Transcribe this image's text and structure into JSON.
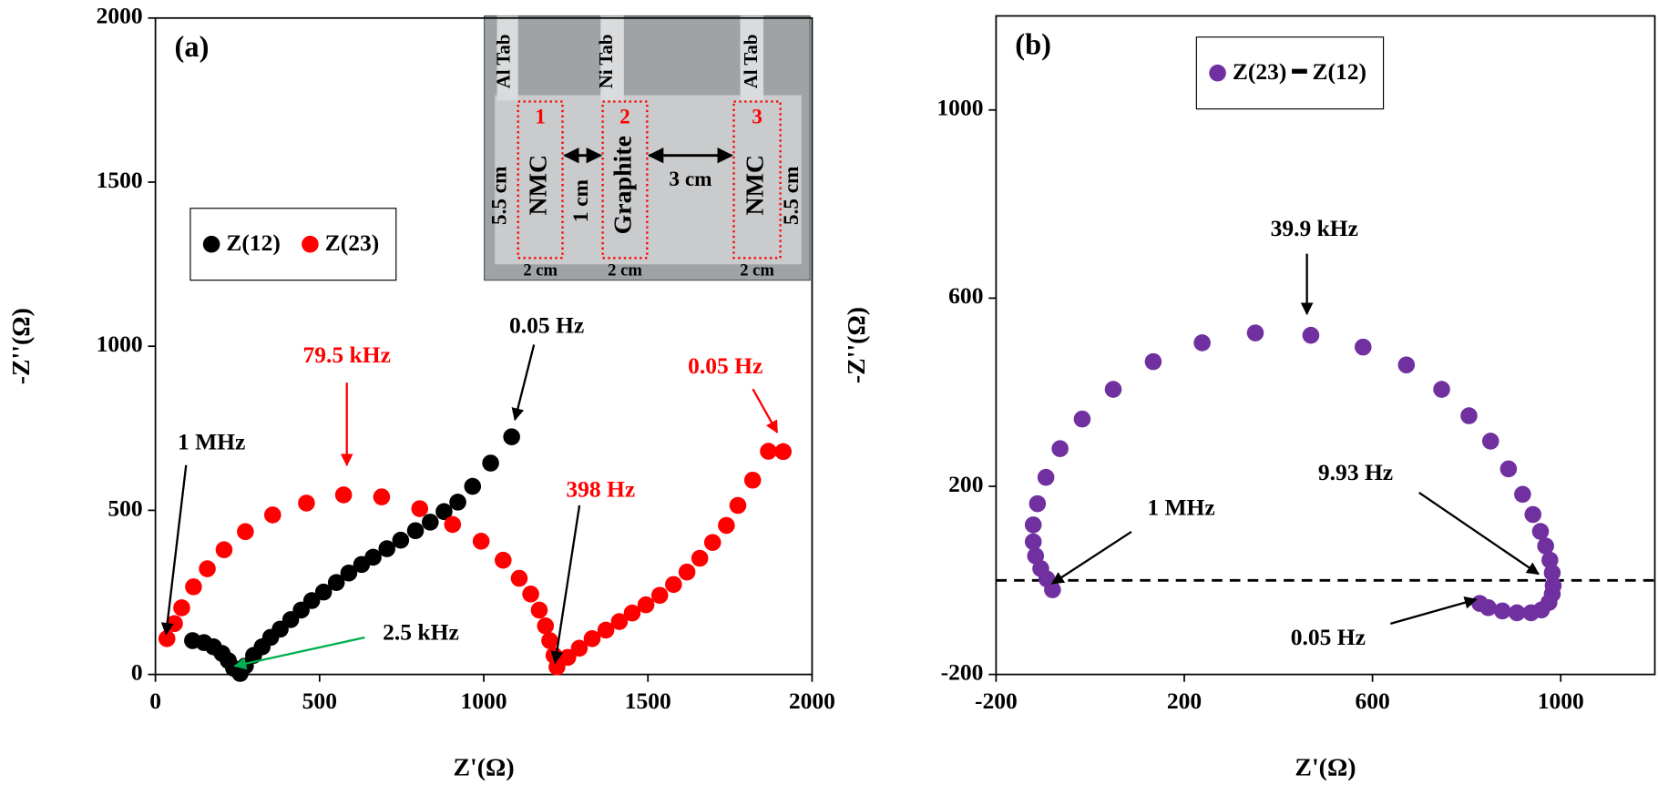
{
  "chart_data": [
    {
      "type": "scatter",
      "label": "(a)",
      "xlabel": "Z'(Ω)",
      "ylabel": "-Z''(Ω)",
      "xlim": [
        0,
        2000
      ],
      "ylim": [
        0,
        2000
      ],
      "xticks": [
        0,
        500,
        1000,
        1500,
        2000
      ],
      "yticks": [
        0,
        500,
        1000,
        1500,
        2000
      ],
      "legend": "center left",
      "series": [
        {
          "name": "Z(12)",
          "color": "#000000",
          "x": [
            113,
            148,
            177,
            203,
            222,
            238,
            258,
            274,
            299,
            325,
            351,
            380,
            412,
            444,
            476,
            512,
            551,
            589,
            628,
            663,
            705,
            747,
            792,
            837,
            879,
            921,
            966,
            1021,
            1085
          ],
          "values": [
            103,
            97,
            84,
            64,
            42,
            19,
            3,
            26,
            58,
            84,
            113,
            138,
            167,
            196,
            225,
            251,
            280,
            309,
            335,
            357,
            383,
            409,
            438,
            464,
            496,
            525,
            573,
            644,
            724
          ]
        },
        {
          "name": "Z(23)",
          "color": "#ff0000",
          "x": [
            35,
            58,
            80,
            116,
            158,
            209,
            274,
            357,
            460,
            573,
            689,
            805,
            905,
            992,
            1059,
            1108,
            1143,
            1169,
            1188,
            1201,
            1214,
            1223,
            1256,
            1291,
            1330,
            1372,
            1413,
            1452,
            1494,
            1536,
            1578,
            1619,
            1658,
            1697,
            1739,
            1774,
            1819,
            1867,
            1912
          ],
          "values": [
            109,
            155,
            203,
            267,
            322,
            380,
            435,
            486,
            522,
            547,
            541,
            505,
            457,
            406,
            348,
            293,
            245,
            196,
            148,
            103,
            58,
            23,
            52,
            80,
            109,
            135,
            161,
            187,
            212,
            241,
            274,
            312,
            354,
            402,
            454,
            515,
            592,
            680,
            679
          ]
        }
      ],
      "annotations": [
        "1 MHz",
        "79.5 kHz",
        "0.05 Hz",
        "2.5 kHz",
        "398 Hz",
        "0.05 Hz"
      ],
      "inset_labels": [
        "Al Tab",
        "Ni Tab",
        "Al Tab",
        "1",
        "2",
        "3",
        "NMC",
        "Graphite",
        "NMC",
        "5.5 cm",
        "1 cm",
        "3 cm",
        "5.5 cm",
        "2 cm",
        "2 cm",
        "2 cm"
      ]
    },
    {
      "type": "scatter",
      "label": "(b)",
      "xlabel": "Z'(Ω)",
      "ylabel": "-Z''(Ω)",
      "xlim": [
        -200,
        1200
      ],
      "ylim": [
        -200,
        1200
      ],
      "xticks": [
        -200,
        200,
        600,
        1000
      ],
      "yticks": [
        -200,
        200,
        600,
        1000
      ],
      "legend": "upper center",
      "hline": 0,
      "series": [
        {
          "name": "Z(23) ━ Z(12)",
          "color": "#7030a0",
          "x": [
            -80,
            -92,
            -105,
            -116,
            -121,
            -121,
            -112,
            -94,
            -64,
            -17,
            49,
            134,
            238,
            351,
            469,
            580,
            672,
            747,
            805,
            851,
            889,
            919,
            941,
            957,
            968,
            977,
            982,
            984,
            982,
            975,
            959,
            937,
            907,
            876,
            846,
            828
          ],
          "values": [
            -20,
            3,
            25,
            52,
            82,
            118,
            163,
            219,
            280,
            343,
            406,
            465,
            505,
            526,
            521,
            496,
            458,
            406,
            350,
            296,
            237,
            183,
            140,
            104,
            73,
            43,
            16,
            -11,
            -29,
            -47,
            -63,
            -69,
            -69,
            -65,
            -58,
            -49
          ]
        }
      ],
      "annotations": [
        "39.9 kHz",
        "1 MHz",
        "9.93 Hz",
        "0.05 Hz"
      ]
    }
  ]
}
